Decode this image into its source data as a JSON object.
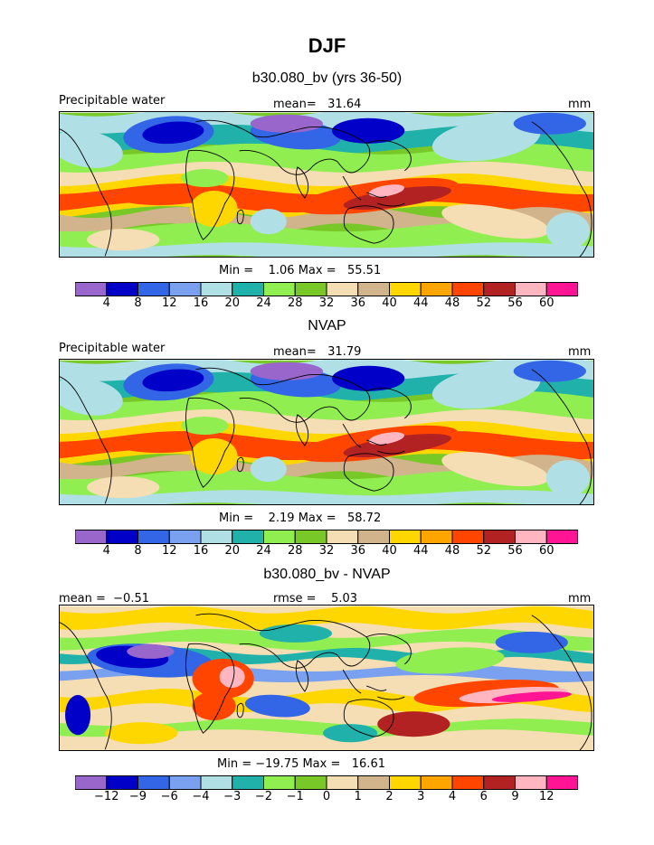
{
  "figure": {
    "title": "DJF"
  },
  "panels": [
    {
      "title": "b30.080_bv (yrs 36-50)",
      "left_label": "Precipitable water",
      "center_label": "mean=   31.64",
      "right_label": "mm",
      "minmax_label": "Min =    1.06 Max =   55.51"
    },
    {
      "title": "NVAP",
      "left_label": "Precipitable water",
      "center_label": "mean=   31.79",
      "right_label": "mm",
      "minmax_label": "Min =    2.19 Max =   58.72"
    },
    {
      "title": "b30.080_bv - NVAP",
      "left_label": "mean =  −0.51",
      "center_label": "rmse =    5.03",
      "right_label": "mm",
      "minmax_label": "Min = −19.75 Max =   16.61"
    }
  ],
  "chart_data": [
    {
      "type": "heatmap",
      "title": "b30.080_bv (yrs 36-50)",
      "variable": "Precipitable water",
      "units": "mm",
      "mean": 31.64,
      "min": 1.06,
      "max": 55.51,
      "levels": [
        "4",
        "8",
        "12",
        "16",
        "20",
        "24",
        "28",
        "32",
        "36",
        "40",
        "44",
        "48",
        "52",
        "56",
        "60"
      ],
      "colors": [
        "#9966cc",
        "#0000c8",
        "#3366e6",
        "#7aa0f0",
        "#b0e0e6",
        "#20b2aa",
        "#90ee50",
        "#78c828",
        "#f5deb3",
        "#d2b48c",
        "#ffd700",
        "#ffa500",
        "#ff4500",
        "#b22222",
        "#ffb6c1",
        "#ff1493"
      ]
    },
    {
      "type": "heatmap",
      "title": "NVAP",
      "variable": "Precipitable water",
      "units": "mm",
      "mean": 31.79,
      "min": 2.19,
      "max": 58.72,
      "levels": [
        "4",
        "8",
        "12",
        "16",
        "20",
        "24",
        "28",
        "32",
        "36",
        "40",
        "44",
        "48",
        "52",
        "56",
        "60"
      ],
      "colors": [
        "#9966cc",
        "#0000c8",
        "#3366e6",
        "#7aa0f0",
        "#b0e0e6",
        "#20b2aa",
        "#90ee50",
        "#78c828",
        "#f5deb3",
        "#d2b48c",
        "#ffd700",
        "#ffa500",
        "#ff4500",
        "#b22222",
        "#ffb6c1",
        "#ff1493"
      ]
    },
    {
      "type": "heatmap",
      "title": "b30.080_bv - NVAP",
      "units": "mm",
      "mean": -0.51,
      "rmse": 5.03,
      "min": -19.75,
      "max": 16.61,
      "levels": [
        "−12",
        "−9",
        "−6",
        "−4",
        "−3",
        "−2",
        "−1",
        "0",
        "1",
        "2",
        "3",
        "4",
        "6",
        "9",
        "12"
      ],
      "colors": [
        "#9966cc",
        "#0000c8",
        "#3366e6",
        "#7aa0f0",
        "#b0e0e6",
        "#20b2aa",
        "#90ee50",
        "#78c828",
        "#f5deb3",
        "#d2b48c",
        "#ffd700",
        "#ffa500",
        "#ff4500",
        "#b22222",
        "#ffb6c1",
        "#ff1493"
      ]
    }
  ]
}
